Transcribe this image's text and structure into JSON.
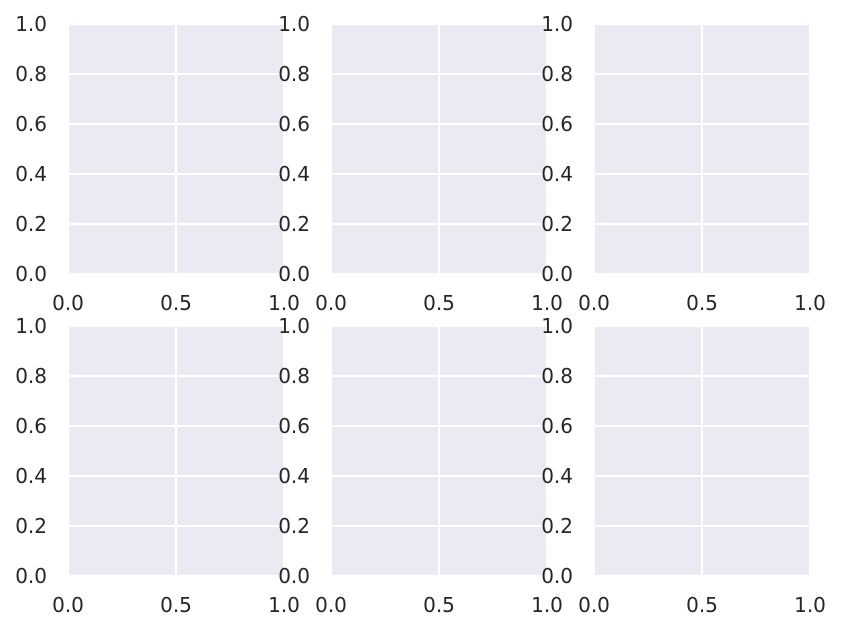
{
  "style": {
    "axes_facecolor": "#eaeaf2",
    "grid_color": "#ffffff",
    "text_color": "#262626"
  },
  "chart_data": [
    {
      "type": "line",
      "title": "",
      "xlabel": "",
      "ylabel": "",
      "series": [],
      "xlim": [
        0,
        1
      ],
      "ylim": [
        0,
        1
      ],
      "xticks": [
        "0.0",
        "0.5",
        "1.0"
      ],
      "yticks": [
        "0.0",
        "0.2",
        "0.4",
        "0.6",
        "0.8",
        "1.0"
      ],
      "grid": true,
      "legend": "none"
    },
    {
      "type": "line",
      "title": "",
      "xlabel": "",
      "ylabel": "",
      "series": [],
      "xlim": [
        0,
        1
      ],
      "ylim": [
        0,
        1
      ],
      "xticks": [
        "0.0",
        "0.5",
        "1.0"
      ],
      "yticks": [
        "0.0",
        "0.2",
        "0.4",
        "0.6",
        "0.8",
        "1.0"
      ],
      "grid": true,
      "legend": "none"
    },
    {
      "type": "line",
      "title": "",
      "xlabel": "",
      "ylabel": "",
      "series": [],
      "xlim": [
        0,
        1
      ],
      "ylim": [
        0,
        1
      ],
      "xticks": [
        "0.0",
        "0.5",
        "1.0"
      ],
      "yticks": [
        "0.0",
        "0.2",
        "0.4",
        "0.6",
        "0.8",
        "1.0"
      ],
      "grid": true,
      "legend": "none"
    },
    {
      "type": "line",
      "title": "",
      "xlabel": "",
      "ylabel": "",
      "series": [],
      "xlim": [
        0,
        1
      ],
      "ylim": [
        0,
        1
      ],
      "xticks": [
        "0.0",
        "0.5",
        "1.0"
      ],
      "yticks": [
        "0.0",
        "0.2",
        "0.4",
        "0.6",
        "0.8",
        "1.0"
      ],
      "grid": true,
      "legend": "none"
    },
    {
      "type": "line",
      "title": "",
      "xlabel": "",
      "ylabel": "",
      "series": [],
      "xlim": [
        0,
        1
      ],
      "ylim": [
        0,
        1
      ],
      "xticks": [
        "0.0",
        "0.5",
        "1.0"
      ],
      "yticks": [
        "0.0",
        "0.2",
        "0.4",
        "0.6",
        "0.8",
        "1.0"
      ],
      "grid": true,
      "legend": "none"
    },
    {
      "type": "line",
      "title": "",
      "xlabel": "",
      "ylabel": "",
      "series": [],
      "xlim": [
        0,
        1
      ],
      "ylim": [
        0,
        1
      ],
      "xticks": [
        "0.0",
        "0.5",
        "1.0"
      ],
      "yticks": [
        "0.0",
        "0.2",
        "0.4",
        "0.6",
        "0.8",
        "1.0"
      ],
      "grid": true,
      "legend": "none"
    }
  ]
}
